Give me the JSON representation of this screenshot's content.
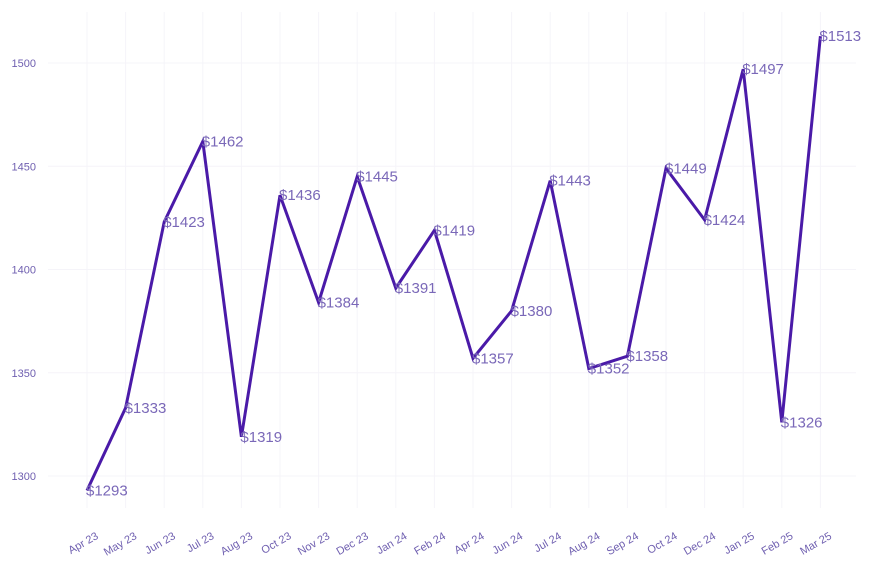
{
  "chart_data": {
    "type": "line",
    "title": "",
    "xlabel": "",
    "ylabel": "",
    "categories": [
      "Apr 23",
      "May 23",
      "Jun 23",
      "Jul 23",
      "Aug 23",
      "Oct 23",
      "Nov 23",
      "Dec 23",
      "Jan 24",
      "Feb 24",
      "Apr 24",
      "Jun 24",
      "Jul 24",
      "Aug 24",
      "Sep 24",
      "Oct 24",
      "Dec 24",
      "Jan 25",
      "Feb 25",
      "Mar 25"
    ],
    "values": [
      1293,
      1333,
      1423,
      1462,
      1319,
      1436,
      1384,
      1445,
      1391,
      1419,
      1357,
      1380,
      1443,
      1352,
      1358,
      1449,
      1424,
      1497,
      1326,
      1513
    ],
    "data_labels": [
      "$1293",
      "$1333",
      "$1423",
      "$1462",
      "$1319",
      "$1436",
      "$1384",
      "$1445",
      "$1391",
      "$1419",
      "$1357",
      "$1380",
      "$1443",
      "$1352",
      "$1358",
      "$1449",
      "$1424",
      "$1497",
      "$1326",
      "$1513"
    ],
    "yticks": [
      1300,
      1350,
      1400,
      1450,
      1500
    ],
    "ylim": [
      1285,
      1520
    ],
    "grid": true,
    "legend": "none",
    "line_color": "#4a1aa8"
  }
}
